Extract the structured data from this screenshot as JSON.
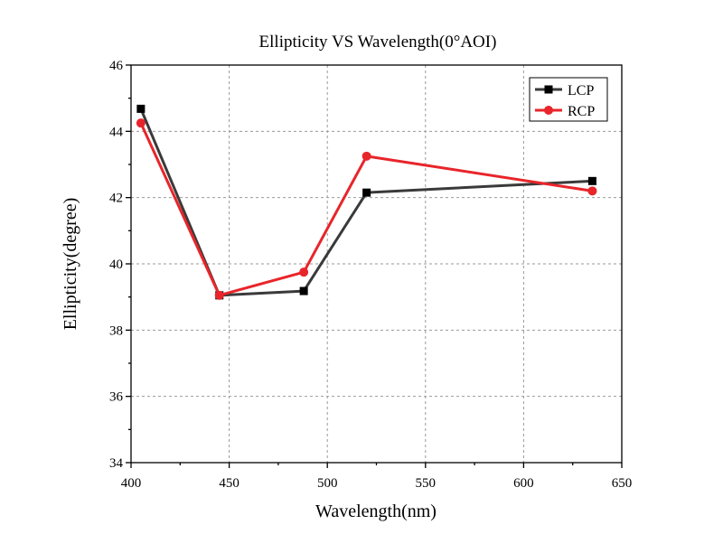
{
  "chart_data": {
    "type": "line",
    "title": "Ellipticity VS Wavelength(0°AOI)",
    "xlabel": "Wavelength(nm)",
    "ylabel": "Ellipticity(degree)",
    "xlim": [
      400,
      650
    ],
    "ylim": [
      34,
      46
    ],
    "xticks": [
      400,
      450,
      500,
      550,
      600,
      650
    ],
    "yticks": [
      34,
      36,
      38,
      40,
      42,
      44,
      46
    ],
    "grid": true,
    "legend_position": "top-right",
    "series": [
      {
        "name": "LCP",
        "color": "#3a3a3a",
        "marker": "square",
        "marker_color": "#000000",
        "x": [
          405,
          445,
          488,
          520,
          635
        ],
        "y": [
          44.68,
          39.05,
          39.18,
          42.15,
          42.5
        ]
      },
      {
        "name": "RCP",
        "color": "#e8252a",
        "marker": "circle",
        "marker_color": "#e8252a",
        "x": [
          405,
          445,
          488,
          520,
          635
        ],
        "y": [
          44.25,
          39.05,
          39.75,
          43.25,
          42.2
        ]
      }
    ]
  }
}
